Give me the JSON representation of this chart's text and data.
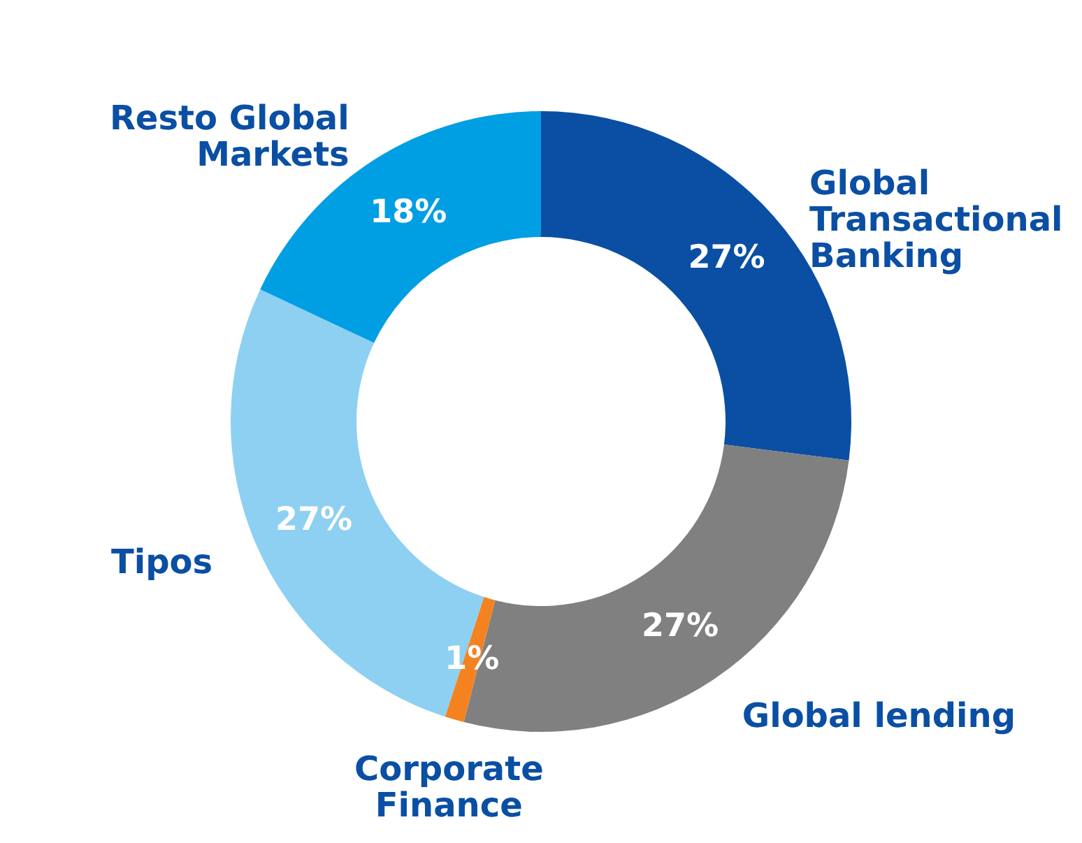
{
  "chart_data": {
    "type": "donut",
    "categories": [
      "Global Transactional Banking",
      "Global lending",
      "Corporate Finance",
      "Tipos",
      "Resto Global Markets"
    ],
    "values": [
      27,
      27,
      1,
      27,
      18
    ],
    "colors": [
      "#0a4fa3",
      "#808080",
      "#f58220",
      "#8dd0f2",
      "#009ee3"
    ],
    "value_labels": [
      "27%",
      "27%",
      "1%",
      "27%",
      "18%"
    ]
  }
}
